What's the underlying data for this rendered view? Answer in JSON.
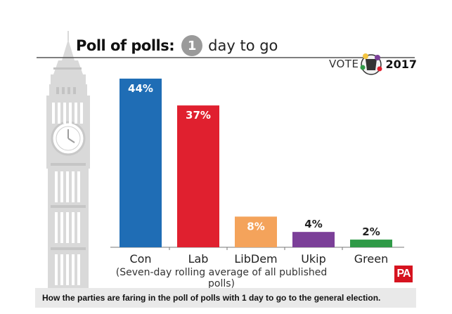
{
  "header": {
    "title_main": "Poll of polls:",
    "days_number": "1",
    "title_rest": "day to go",
    "vote_label": "VOTE",
    "vote_year": "2017"
  },
  "footer": {
    "note": "(Seven-day rolling average of all published polls)",
    "logo_text": "PA",
    "caption": "How the parties are faring in the poll of polls with 1 day to go to the general election."
  },
  "chart_data": {
    "type": "bar",
    "categories": [
      "Con",
      "Lab",
      "LibDem",
      "Ukip",
      "Green"
    ],
    "values": [
      44,
      37,
      8,
      4,
      2
    ],
    "value_labels": [
      "44%",
      "37%",
      "8%",
      "4%",
      "2%"
    ],
    "colors": [
      "#1f6db5",
      "#e0202f",
      "#f4a35b",
      "#7b3f98",
      "#2f9a47"
    ],
    "title": "Poll of polls: 1 day to go",
    "xlabel": "",
    "ylabel": "",
    "ylim": [
      0,
      46
    ],
    "grid": false,
    "legend": "none"
  }
}
